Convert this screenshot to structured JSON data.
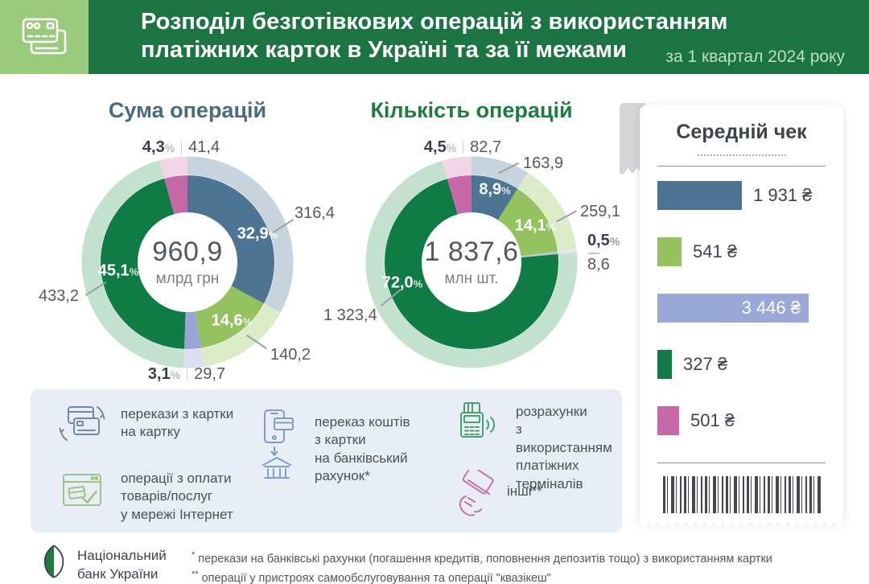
{
  "header": {
    "title_line1": "Розподіл безготівкових операцій з використанням",
    "title_line2": "платіжних карток в Україні та за її межами",
    "subtitle": "за 1 квартал 2024 року"
  },
  "pct_symbol": "%",
  "charts": {
    "sum": {
      "title": "Сума операцій",
      "center_value": "960,9",
      "center_unit": "млрд грн",
      "slices": [
        {
          "name": "card-to-card",
          "pct": 32.9,
          "pct_label": "32,9",
          "value": "316,4",
          "color": "#4d7492",
          "halo": "#c7d4de"
        },
        {
          "name": "internet-payments",
          "pct": 14.6,
          "pct_label": "14,6",
          "value": "140,2",
          "color": "#94c25e",
          "halo": "#dcebc8"
        },
        {
          "name": "to-bank-account",
          "pct": 3.1,
          "pct_label": "3,1",
          "value": "29,7",
          "color": "#9aa6d8",
          "halo": "#dcdff2"
        },
        {
          "name": "pos-terminals",
          "pct": 45.1,
          "pct_label": "45,1",
          "value": "433,2",
          "color": "#0f7b45",
          "halo": "#c2e1cf"
        },
        {
          "name": "other",
          "pct": 4.3,
          "pct_label": "4,3",
          "value": "41,4",
          "color": "#c768a9",
          "halo": "#f1d6e8"
        }
      ]
    },
    "count": {
      "title": "Кількість операцій",
      "center_value": "1 837,6",
      "center_unit": "млн шт.",
      "slices": [
        {
          "name": "card-to-card",
          "pct": 8.9,
          "pct_label": "8,9",
          "value": "163,9",
          "color": "#4d7492",
          "halo": "#c7d4de"
        },
        {
          "name": "internet-payments",
          "pct": 14.1,
          "pct_label": "14,1",
          "value": "259,1",
          "color": "#94c25e",
          "halo": "#dcebc8"
        },
        {
          "name": "to-bank-account",
          "pct": 0.5,
          "pct_label": "0,5",
          "value": "8,6",
          "color": "#b7c9d6",
          "halo": "#e1e9ee"
        },
        {
          "name": "pos-terminals",
          "pct": 72.0,
          "pct_label": "72,0",
          "value": "1 323,4",
          "color": "#0f7b45",
          "halo": "#c2e1cf"
        },
        {
          "name": "other",
          "pct": 4.5,
          "pct_label": "4,5",
          "value": "82,7",
          "color": "#c768a9",
          "halo": "#f1d6e8"
        }
      ]
    }
  },
  "receipt": {
    "title": "Середній чек",
    "max": 3446,
    "bars": [
      {
        "name": "card-to-card",
        "value": 1931,
        "label": "1 931 ₴",
        "color": "#4d7492",
        "inside": false
      },
      {
        "name": "internet-payments",
        "value": 541,
        "label": "541 ₴",
        "color": "#94c25e",
        "inside": false
      },
      {
        "name": "to-bank-account",
        "value": 3446,
        "label": "3 446 ₴",
        "color": "#9aa8d8",
        "inside": true
      },
      {
        "name": "pos-terminals",
        "value": 327,
        "label": "327 ₴",
        "color": "#0f7b45",
        "inside": false
      },
      {
        "name": "other",
        "value": 501,
        "label": "501 ₴",
        "color": "#c768a9",
        "inside": false
      }
    ]
  },
  "legend": {
    "items": [
      {
        "icon": "card-transfer-icon",
        "label": "перекази з картки\nна картку"
      },
      {
        "icon": "online-payment-icon",
        "label": "операції з оплати\nтоварів/послуг\nу мережі Інтернет"
      },
      {
        "icon": "card-to-bank-icon",
        "label": "переказ коштів\nз картки\nна банківський\nрахунок*"
      },
      {
        "icon": "pos-terminal-icon",
        "label": "розрахунки\nз використанням\nплатіжних\nтерміналів"
      },
      {
        "icon": "hand-card-icon",
        "label": "інші**"
      }
    ]
  },
  "footer": {
    "org_line1": "Національний",
    "org_line2": "банк України",
    "notes": [
      {
        "mark": "*",
        "text": "перекази на банківські рахунки (погашення кредитів, поповнення депозитів тощо) з використанням картки"
      },
      {
        "mark": "**",
        "text": "операції у пристроях самообслуговування та операції \"квазікеш\""
      }
    ]
  },
  "chart_data": [
    {
      "type": "pie",
      "title": "Сума операцій",
      "unit": "млрд грн",
      "total": 960.9,
      "labels": [
        "перекази з картки на картку",
        "операції з оплати товарів/послуг у мережі Інтернет",
        "переказ коштів з картки на банківський рахунок",
        "розрахунки з використанням платіжних терміналів",
        "інші"
      ],
      "percent": [
        32.9,
        14.6,
        3.1,
        45.1,
        4.3
      ],
      "values": [
        316.4,
        140.2,
        29.7,
        433.2,
        41.4
      ],
      "colors": [
        "#4d7492",
        "#94c25e",
        "#9aa6d8",
        "#0f7b45",
        "#c768a9"
      ]
    },
    {
      "type": "pie",
      "title": "Кількість операцій",
      "unit": "млн шт.",
      "total": 1837.6,
      "labels": [
        "перекази з картки на картку",
        "операції з оплати товарів/послуг у мережі Інтернет",
        "переказ коштів з картки на банківський рахунок",
        "розрахунки з використанням платіжних терміналів",
        "інші"
      ],
      "percent": [
        8.9,
        14.1,
        0.5,
        72.0,
        4.5
      ],
      "values": [
        163.9,
        259.1,
        8.6,
        1323.4,
        82.7
      ],
      "colors": [
        "#4d7492",
        "#94c25e",
        "#b7c9d6",
        "#0f7b45",
        "#c768a9"
      ]
    },
    {
      "type": "bar",
      "title": "Середній чек",
      "unit": "₴",
      "categories": [
        "перекази з картки на картку",
        "операції з оплати товарів/послуг у мережі Інтернет",
        "переказ коштів з картки на банківський рахунок",
        "розрахунки з використанням платіжних терміналів",
        "інші"
      ],
      "values": [
        1931,
        541,
        3446,
        327,
        501
      ],
      "colors": [
        "#4d7492",
        "#94c25e",
        "#9aa8d8",
        "#0f7b45",
        "#c768a9"
      ]
    }
  ]
}
